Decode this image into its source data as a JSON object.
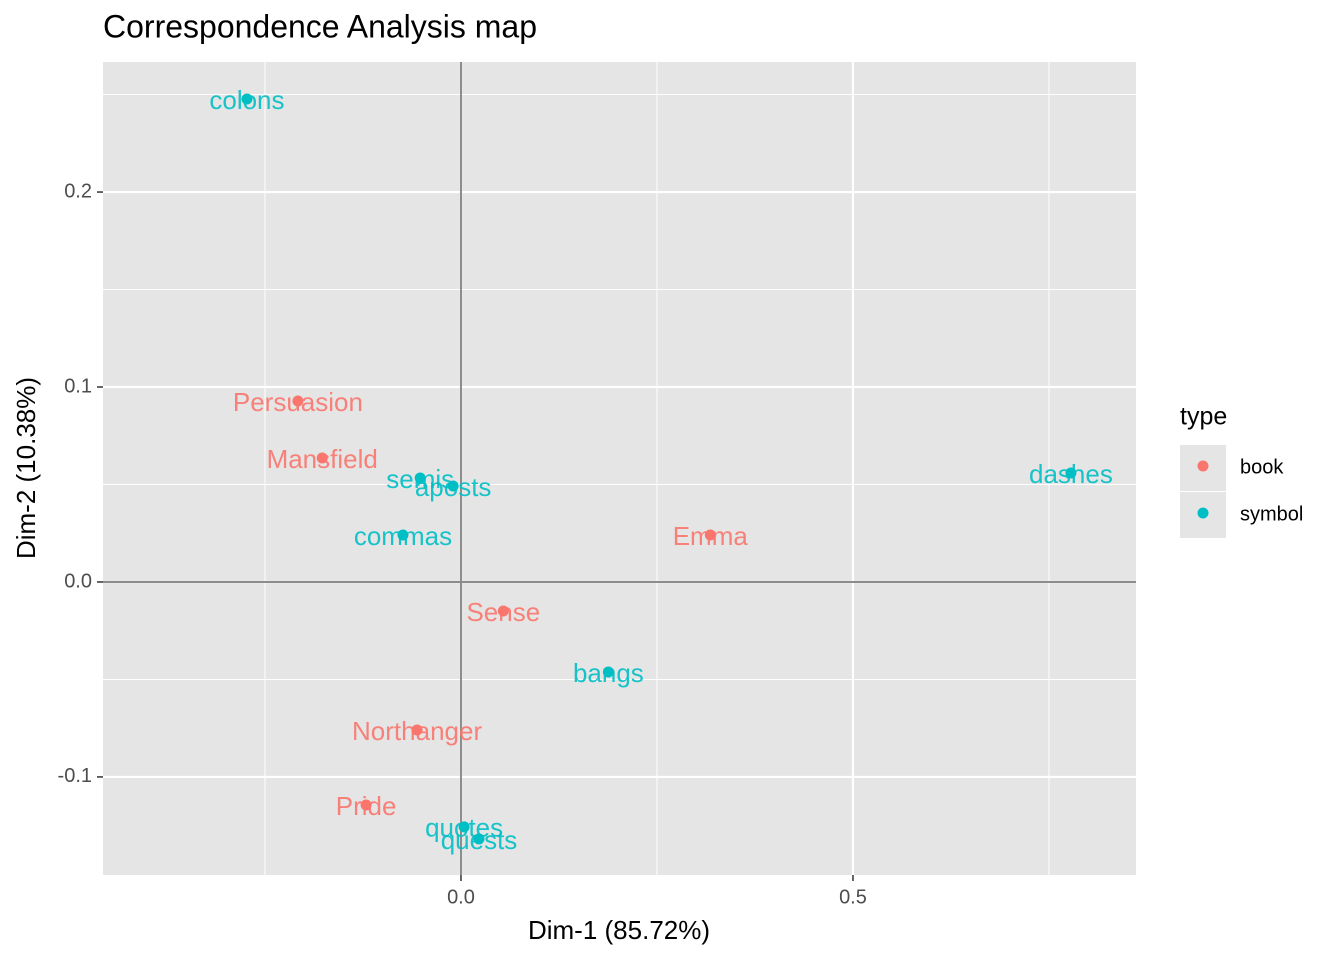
{
  "chart_data": {
    "type": "scatter",
    "title": "Correspondence Analysis map",
    "xlabel": "Dim-1 (85.72%)",
    "ylabel": "Dim-2 (10.38%)",
    "xlim": [
      -0.4566,
      0.861
    ],
    "ylim": [
      -0.1503,
      0.2667
    ],
    "xticks": [
      {
        "value": 0,
        "label": "0.0"
      },
      0.5
    ],
    "yticks": [
      -0.1,
      {
        "value": 0,
        "label": "0.0"
      },
      0.1,
      0.2
    ],
    "xminor": [
      -0.25,
      0.25,
      0.75
    ],
    "yminor": [
      -0.05,
      0.05,
      0.15,
      0.25
    ],
    "grid": true,
    "legend_title": "type",
    "legend_position": "right",
    "series": [
      {
        "name": "book",
        "color": "#F8766D",
        "labels": [
          "Persuasion",
          "Mansfield",
          "Emma",
          "Sense",
          "Northanger",
          "Pride"
        ],
        "x": [
          -0.208,
          -0.177,
          0.318,
          0.054,
          -0.056,
          -0.121
        ],
        "y": [
          0.0928,
          0.0636,
          0.0241,
          -0.0149,
          -0.0759,
          -0.1144
        ]
      },
      {
        "name": "symbol",
        "color": "#00BFC4",
        "labels": [
          "colons",
          "semis",
          "aposts",
          "commas",
          "dashes",
          "bangs",
          "quotes",
          "quests"
        ],
        "x": [
          -0.273,
          -0.052,
          -0.01,
          -0.074,
          0.778,
          0.188,
          0.004,
          0.023
        ],
        "y": [
          0.2477,
          0.0533,
          0.0492,
          0.0241,
          0.0559,
          -0.0462,
          -0.1256,
          -0.1318
        ]
      }
    ]
  }
}
